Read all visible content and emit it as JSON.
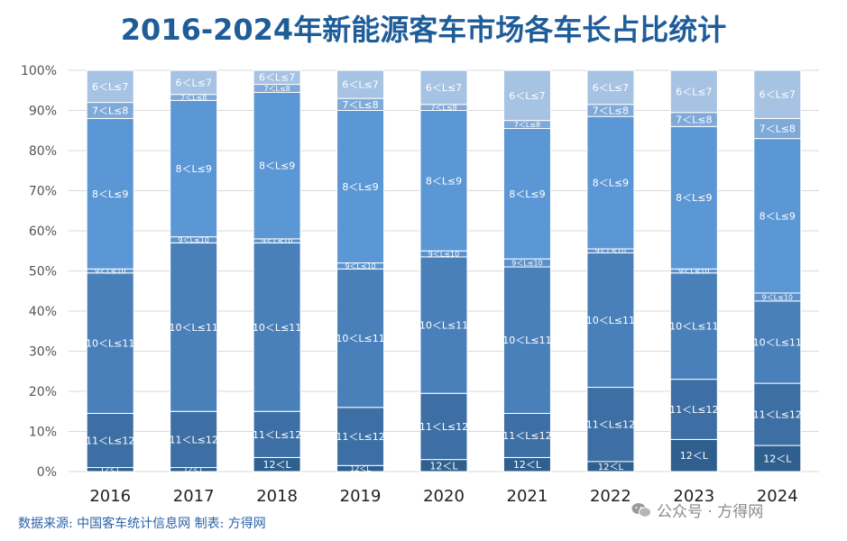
{
  "title": "2016-2024年新能源客车市场各车长占比统计",
  "source_note": "数据来源: 中国客车统计信息网 制表: 方得网",
  "watermark": "公众号 · 方得网",
  "chart_data": {
    "type": "bar",
    "stacked": true,
    "title": "2016-2024年新能源客车市场各车长占比统计",
    "xlabel": "",
    "ylabel": "",
    "ylim": [
      0,
      100
    ],
    "y_ticks": [
      "0%",
      "10%",
      "20%",
      "30%",
      "40%",
      "50%",
      "60%",
      "70%",
      "80%",
      "90%",
      "100%"
    ],
    "grid": true,
    "categories": [
      "2016",
      "2017",
      "2018",
      "2019",
      "2020",
      "2021",
      "2022",
      "2023",
      "2024"
    ],
    "series": [
      {
        "name": "12＜L",
        "color": "#2f5f8f",
        "values": [
          1,
          1,
          3.5,
          1.5,
          3,
          3.5,
          2.5,
          8,
          6.5
        ]
      },
      {
        "name": "11＜L≤12",
        "color": "#3d6fa4",
        "values": [
          13.5,
          14,
          11.5,
          14.5,
          16.5,
          11,
          18.5,
          15,
          15.5
        ]
      },
      {
        "name": "10＜L≤11",
        "color": "#4a80ba",
        "values": [
          35,
          42,
          42,
          34.5,
          34,
          36.5,
          33.5,
          26.5,
          20.5
        ]
      },
      {
        "name": "9＜L≤10",
        "color": "#5b92cc",
        "values": [
          1,
          1.5,
          1,
          1.5,
          1.5,
          2,
          1,
          1,
          2
        ]
      },
      {
        "name": "8＜L≤9",
        "color": "#5c97d5",
        "values": [
          37.5,
          34,
          36.5,
          38,
          35,
          32.5,
          33,
          35.5,
          38.5
        ]
      },
      {
        "name": "7＜L≤8",
        "color": "#7ea9d8",
        "values": [
          4,
          1.5,
          2,
          3,
          1.5,
          2,
          3,
          3.5,
          5
        ]
      },
      {
        "name": "6＜L≤7",
        "color": "#a6c3e4",
        "values": [
          8,
          6,
          3.5,
          7,
          8.5,
          12.5,
          8.5,
          10.5,
          12
        ]
      }
    ]
  }
}
